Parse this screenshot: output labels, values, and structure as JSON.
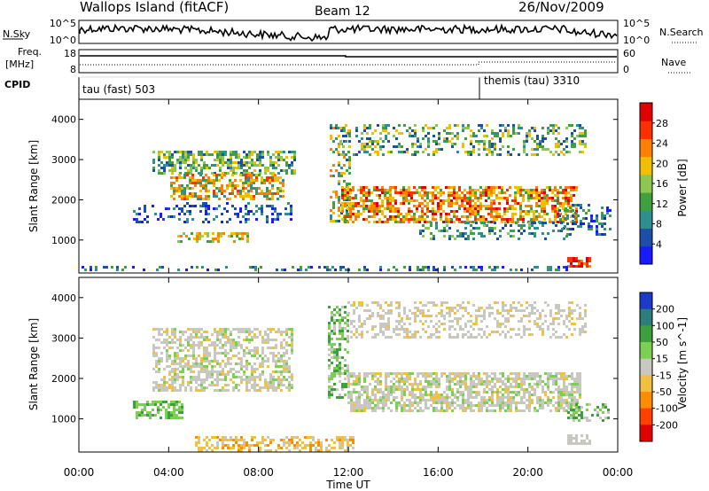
{
  "header": {
    "station": "Wallops Island (fitACF)",
    "beam": "Beam 12",
    "date": "26/Nov/2009"
  },
  "strip": {
    "nsky_label": "N.Sky",
    "nsky_top": "10^5",
    "nsky_bottom": "10^0",
    "nsearch_label": "N.Search",
    "nsearch_top": "10^5",
    "nsearch_bottom": "10^0",
    "freq_label_1": "Freq.",
    "freq_label_2": "[MHz]",
    "freq_top": "18",
    "freq_bottom": "8",
    "nave_label": "Nave",
    "nave_top": "60",
    "nave_bottom": "0",
    "cpid_label": "CPID",
    "cpid_1": "tau (fast) 503",
    "cpid_2": "themis (tau) 3310"
  },
  "chart_data": [
    {
      "type": "heatmap",
      "name": "power",
      "ylabel": "Slant Range [km]",
      "yticks": [
        1000,
        2000,
        3000,
        4000
      ],
      "ylim": [
        180,
        4500
      ],
      "colorbar_label": "Power [dB]",
      "colorbar_ticks": [
        4,
        8,
        12,
        16,
        20,
        24,
        28
      ],
      "colorbar_range": [
        0,
        32
      ],
      "colors": [
        "#1a1aff",
        "#1e4fa8",
        "#2f8f8f",
        "#40a040",
        "#8cc850",
        "#f0c000",
        "#ff8000",
        "#ff3000",
        "#e00000"
      ]
    },
    {
      "type": "heatmap",
      "name": "velocity",
      "ylabel": "Slant Range [km]",
      "yticks": [
        1000,
        2000,
        3000,
        4000
      ],
      "ylim": [
        180,
        4500
      ],
      "xlabel": "Time UT",
      "xticks": [
        "00:00",
        "04:00",
        "08:00",
        "12:00",
        "16:00",
        "20:00",
        "00:00"
      ],
      "colorbar_label": "Velocity [m s^-1]",
      "colorbar_ticks": [
        200,
        100,
        50,
        15,
        -15,
        -50,
        -100,
        -200
      ],
      "colors": [
        "#1a3cc8",
        "#2e7d7d",
        "#3ca03c",
        "#7cd050",
        "#c8c8c0",
        "#f0c040",
        "#ff8c00",
        "#ff4000",
        "#e00000"
      ]
    }
  ]
}
